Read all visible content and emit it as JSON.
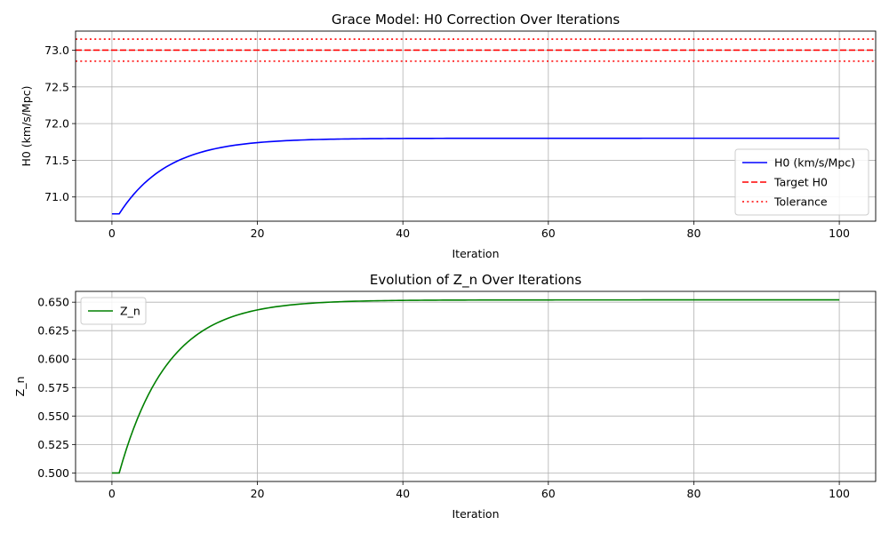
{
  "chart_data": [
    {
      "type": "line",
      "title": "Grace Model: H0 Correction Over Iterations",
      "xlabel": "Iteration",
      "ylabel": "H0 (km/s/Mpc)",
      "xlim": [
        -5,
        105
      ],
      "ylim": [
        70.67,
        73.26
      ],
      "xticks": [
        0,
        20,
        40,
        60,
        80,
        100
      ],
      "yticks": [
        71.0,
        71.5,
        72.0,
        72.5,
        73.0
      ],
      "ytick_decimals": 1,
      "grid": true,
      "legend_position": "lower-right",
      "series": [
        {
          "name": "H0 (km/s/Mpc)",
          "color": "#0000ff",
          "style": "solid",
          "curve": {
            "x_start": 0,
            "x_end": 100,
            "plateau_until": 1,
            "initial": 70.77,
            "final": 71.8,
            "rate": 0.15
          }
        }
      ],
      "hlines": [
        {
          "name": "Target H0",
          "y": 73.0,
          "color": "#ff0000",
          "style": "dashed"
        },
        {
          "name": "Tolerance",
          "y": 73.15,
          "color": "#ff0000",
          "style": "dotted"
        },
        {
          "name": "",
          "y": 72.85,
          "color": "#ff0000",
          "style": "dotted"
        }
      ],
      "legend": [
        {
          "label": "H0 (km/s/Mpc)",
          "color": "#0000ff",
          "style": "solid"
        },
        {
          "label": "Target H0",
          "color": "#ff0000",
          "style": "dashed"
        },
        {
          "label": "Tolerance",
          "color": "#ff0000",
          "style": "dotted"
        }
      ]
    },
    {
      "type": "line",
      "title": "Evolution of Z_n Over Iterations",
      "xlabel": "Iteration",
      "ylabel": "Z_n",
      "xlim": [
        -5,
        105
      ],
      "ylim": [
        0.4925,
        0.6595
      ],
      "xticks": [
        0,
        20,
        40,
        60,
        80,
        100
      ],
      "yticks": [
        0.5,
        0.525,
        0.55,
        0.575,
        0.6,
        0.625,
        0.65
      ],
      "ytick_decimals": 3,
      "grid": true,
      "legend_position": "upper-left",
      "series": [
        {
          "name": "Z_n",
          "color": "#008000",
          "style": "solid",
          "curve": {
            "x_start": 0,
            "x_end": 100,
            "plateau_until": 1,
            "initial": 0.5,
            "final": 0.652,
            "rate": 0.15
          }
        }
      ],
      "hlines": [],
      "legend": [
        {
          "label": "Z_n",
          "color": "#008000",
          "style": "solid"
        }
      ]
    }
  ]
}
